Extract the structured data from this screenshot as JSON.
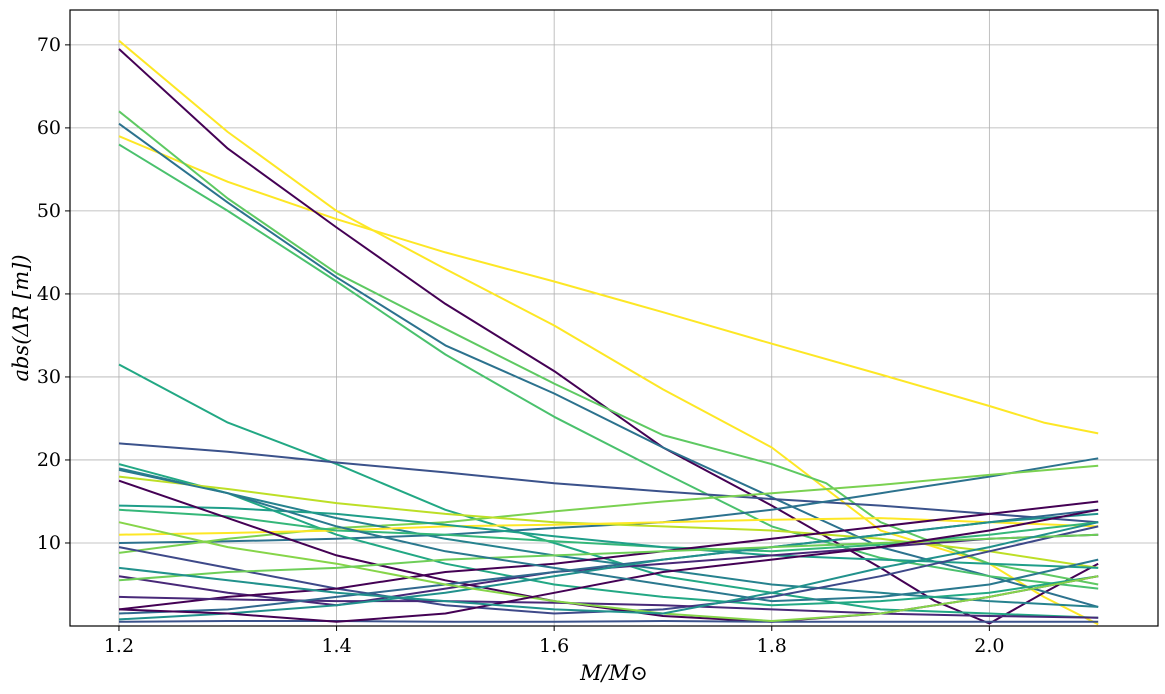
{
  "chart_data": {
    "type": "line",
    "title": "",
    "xlabel": "M/M⊙",
    "ylabel": "abs(ΔR [m])",
    "xlim": [
      1.155,
      2.155
    ],
    "ylim": [
      0,
      74.2
    ],
    "grid": true,
    "legend": "none",
    "xticks": [
      1.2,
      1.4,
      1.6,
      1.8,
      2.0
    ],
    "xtick_labels": [
      "1.2",
      "1.4",
      "1.6",
      "1.8",
      "2.0"
    ],
    "yticks": [
      10,
      20,
      30,
      40,
      50,
      60,
      70
    ],
    "ytick_labels": [
      "10",
      "20",
      "30",
      "40",
      "50",
      "60",
      "70"
    ],
    "series": [
      {
        "color": "#fde725",
        "x": [
          1.2,
          1.3,
          1.4,
          1.5,
          1.6,
          1.7,
          1.8,
          1.9,
          1.95,
          2.0,
          2.05,
          2.1
        ],
        "y": [
          70.5,
          59.5,
          50,
          43,
          36.2,
          28.5,
          21.5,
          11.5,
          9.5,
          7.5,
          3.5,
          0.2
        ]
      },
      {
        "color": "#fde725",
        "x": [
          1.2,
          1.3,
          1.4,
          1.5,
          1.6,
          1.7,
          1.8,
          1.9,
          2.0,
          2.05,
          2.1
        ],
        "y": [
          59,
          53.5,
          49,
          45,
          41.5,
          37.8,
          34,
          30.3,
          26.5,
          24.5,
          23.2
        ]
      },
      {
        "color": "#440154",
        "x": [
          1.2,
          1.3,
          1.4,
          1.5,
          1.6,
          1.7,
          1.8,
          1.9,
          1.95,
          2.0,
          2.05,
          2.1
        ],
        "y": [
          69.5,
          57.5,
          48,
          38.8,
          30.7,
          21.5,
          14.5,
          7,
          3,
          0.3,
          4,
          7.5
        ]
      },
      {
        "color": "#5ec962",
        "x": [
          1.2,
          1.3,
          1.4,
          1.5,
          1.6,
          1.7,
          1.8,
          1.85,
          1.9,
          2.0,
          2.1
        ],
        "y": [
          62,
          51.5,
          42.5,
          35.8,
          29.2,
          23,
          19.5,
          17.2,
          12.5,
          7.5,
          5
        ]
      },
      {
        "color": "#2c728e",
        "x": [
          1.2,
          1.3,
          1.4,
          1.5,
          1.6,
          1.7,
          1.8,
          1.9,
          2.0,
          2.1
        ],
        "y": [
          60.5,
          51,
          42,
          33.8,
          28,
          21.5,
          15.5,
          9.5,
          6,
          2.3
        ]
      },
      {
        "color": "#4ac16d",
        "x": [
          1.2,
          1.3,
          1.4,
          1.5,
          1.6,
          1.7,
          1.8,
          1.9,
          2.0,
          2.1
        ],
        "y": [
          58,
          50,
          41.5,
          32.7,
          25.2,
          18.5,
          12,
          8.2,
          6,
          4.5
        ]
      },
      {
        "color": "#22a884",
        "x": [
          1.2,
          1.3,
          1.4,
          1.5,
          1.6,
          1.7,
          1.8,
          1.9,
          2.0,
          2.1
        ],
        "y": [
          31.5,
          24.5,
          19.5,
          14,
          10,
          6,
          4,
          2,
          1.5,
          1
        ]
      },
      {
        "color": "#3b528b",
        "x": [
          1.2,
          1.3,
          1.4,
          1.5,
          1.6,
          1.7,
          1.8,
          1.9,
          2.0,
          2.1
        ],
        "y": [
          22,
          21,
          19.7,
          18.5,
          17.2,
          16.2,
          15.3,
          14.5,
          13.5,
          12.5
        ]
      },
      {
        "color": "#2c728e",
        "x": [
          1.2,
          1.3,
          1.4,
          1.5,
          1.6,
          1.7,
          1.8,
          1.9,
          2.0,
          2.1
        ],
        "y": [
          10,
          10.2,
          10.5,
          11,
          11.8,
          12.5,
          14,
          16,
          18,
          20.2
        ]
      },
      {
        "color": "#7ad151",
        "x": [
          1.2,
          1.3,
          1.4,
          1.5,
          1.6,
          1.7,
          1.8,
          1.9,
          2.0,
          2.1
        ],
        "y": [
          8.8,
          10.5,
          11.8,
          12.5,
          13.8,
          15,
          16,
          17,
          18.2,
          19.3
        ]
      },
      {
        "color": "#26828e",
        "x": [
          1.2,
          1.3,
          1.4,
          1.5,
          1.6,
          1.7,
          1.8,
          1.9,
          2.0,
          2.1
        ],
        "y": [
          19,
          16,
          13,
          10.5,
          8.5,
          6.8,
          5,
          4,
          3,
          2.3
        ]
      },
      {
        "color": "#22a884",
        "x": [
          1.2,
          1.3,
          1.4,
          1.5,
          1.6,
          1.7,
          1.8,
          1.9,
          2.0,
          2.1
        ],
        "y": [
          19.5,
          16,
          11,
          7.5,
          5,
          3.5,
          2.5,
          3,
          4,
          6
        ]
      },
      {
        "color": "#bddf26",
        "x": [
          1.2,
          1.3,
          1.4,
          1.5,
          1.6,
          1.7,
          1.8,
          1.9,
          2.0,
          2.1
        ],
        "y": [
          18,
          16.5,
          14.8,
          13.5,
          12.5,
          12,
          11.5,
          10.5,
          9,
          7
        ]
      },
      {
        "color": "#fde725",
        "x": [
          1.2,
          1.3,
          1.4,
          1.5,
          1.6,
          1.7,
          1.8,
          1.9,
          2.0,
          2.1
        ],
        "y": [
          11,
          11.2,
          11.5,
          12,
          12.2,
          12.5,
          12.8,
          13,
          12.5,
          12
        ]
      },
      {
        "color": "#35b779",
        "x": [
          1.2,
          1.3,
          1.4,
          1.5,
          1.6,
          1.7,
          1.8,
          1.9,
          2.0,
          2.1
        ],
        "y": [
          14,
          13.2,
          11.5,
          11,
          10.2,
          9.5,
          9,
          9.8,
          11,
          12.5
        ]
      },
      {
        "color": "#1f9e89",
        "x": [
          1.2,
          1.3,
          1.4,
          1.5,
          1.6,
          1.7,
          1.8,
          1.9,
          2.0,
          2.1
        ],
        "y": [
          14.5,
          14.2,
          13.5,
          12.2,
          10.8,
          9.5,
          8.5,
          8,
          7.5,
          7
        ]
      },
      {
        "color": "#3e4989",
        "x": [
          1.2,
          1.3,
          1.4,
          1.5,
          1.6,
          1.7,
          1.8,
          1.9,
          2.0,
          2.1
        ],
        "y": [
          9.5,
          7,
          4.5,
          2.5,
          1.5,
          2,
          3.5,
          6,
          9,
          12
        ]
      },
      {
        "color": "#482878",
        "x": [
          1.2,
          1.3,
          1.4,
          1.5,
          1.6,
          1.7,
          1.8,
          1.9,
          2.0,
          2.1
        ],
        "y": [
          6,
          4,
          2.5,
          4.5,
          6.5,
          7.5,
          8.5,
          9.5,
          10.5,
          11
        ]
      },
      {
        "color": "#440154",
        "x": [
          1.2,
          1.3,
          1.4,
          1.5,
          1.6,
          1.7,
          1.8,
          1.9,
          2.0,
          2.1
        ],
        "y": [
          2,
          3.5,
          4.5,
          6.5,
          7.5,
          9,
          10.5,
          12,
          13.5,
          15
        ]
      },
      {
        "color": "#440154",
        "x": [
          1.2,
          1.3,
          1.4,
          1.5,
          1.6,
          1.7,
          1.8,
          1.9,
          2.0,
          2.1
        ],
        "y": [
          17.5,
          13,
          8.5,
          5.5,
          3,
          1.2,
          0.5,
          1.5,
          3.5,
          6
        ]
      },
      {
        "color": "#482878",
        "x": [
          1.2,
          1.3,
          1.4,
          1.5,
          1.6,
          1.7,
          1.8,
          1.9,
          2.0,
          2.1
        ],
        "y": [
          3.5,
          3.2,
          3,
          3,
          2.8,
          2.5,
          2,
          1.5,
          1.2,
          1
        ]
      },
      {
        "color": "#31688e",
        "x": [
          1.2,
          1.3,
          1.4,
          1.5,
          1.6,
          1.7,
          1.8,
          1.9,
          2.0,
          2.1
        ],
        "y": [
          1.5,
          2,
          3.5,
          5,
          6.5,
          8,
          9.5,
          11,
          12.5,
          14
        ]
      },
      {
        "color": "#3b528b",
        "x": [
          1.2,
          1.3,
          1.4,
          1.5,
          1.6,
          1.7,
          1.8,
          1.9,
          2.0,
          2.1
        ],
        "y": [
          0.5,
          0.6,
          0.6,
          0.5,
          0.5,
          0.6,
          0.5,
          0.5,
          0.5,
          0.5
        ]
      },
      {
        "color": "#21918c",
        "x": [
          1.2,
          1.3,
          1.4,
          1.5,
          1.6,
          1.7,
          1.8,
          1.9,
          2.0,
          2.1
        ],
        "y": [
          0.8,
          1.5,
          2.5,
          4,
          6,
          8,
          9.5,
          11,
          12.5,
          13.5
        ]
      },
      {
        "color": "#86d549",
        "x": [
          1.2,
          1.3,
          1.4,
          1.5,
          1.6,
          1.7,
          1.8,
          1.9,
          2.0,
          2.1
        ],
        "y": [
          12.5,
          9.5,
          7.5,
          5,
          3,
          1.5,
          0.6,
          1.5,
          3.5,
          6
        ]
      },
      {
        "color": "#6ece58",
        "x": [
          1.2,
          1.3,
          1.4,
          1.5,
          1.6,
          1.7,
          1.8,
          1.9,
          2.0,
          2.1
        ],
        "y": [
          5.5,
          6.5,
          7,
          8,
          8.5,
          9,
          9.5,
          10,
          10.5,
          11
        ]
      },
      {
        "color": "#440154",
        "x": [
          1.2,
          1.3,
          1.4,
          1.5,
          1.6,
          1.7,
          1.8,
          1.9,
          2.0,
          2.1
        ],
        "y": [
          2,
          1.5,
          0.5,
          1.5,
          4,
          6.5,
          8,
          9.5,
          11.5,
          14
        ]
      },
      {
        "color": "#21918c",
        "x": [
          1.2,
          1.3,
          1.4,
          1.5,
          1.6,
          1.7,
          1.8,
          1.9,
          2.0,
          2.1
        ],
        "y": [
          7,
          5.5,
          4,
          3,
          2,
          1.5,
          4,
          7,
          9.5,
          12.5
        ]
      },
      {
        "color": "#2a788e",
        "x": [
          1.2,
          1.3,
          1.4,
          1.5,
          1.6,
          1.7,
          1.8,
          1.9,
          2.0,
          2.1
        ],
        "y": [
          18.8,
          16,
          12,
          9,
          7,
          5,
          3,
          3.5,
          5,
          8
        ]
      }
    ]
  }
}
